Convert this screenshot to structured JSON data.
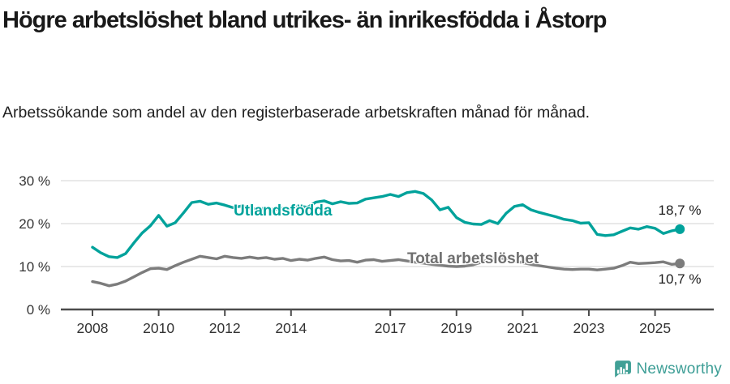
{
  "title": "Högre arbetslöshet bland utrikes- än inrikesfödda i Åstorp",
  "subtitle": "Arbetssökande som andel av den registerbaserade arbetskraften månad för månad.",
  "footer": {
    "brand": "Newsworthy"
  },
  "colors": {
    "accent_teal": "#00a29b",
    "series_gray": "#7c7c7c",
    "axis_line": "#4c4c4c",
    "gridline": "#dcdcdc",
    "tick_text": "#333333",
    "logo_teal": "#41a096"
  },
  "chart_data": {
    "type": "line",
    "title": "Högre arbetslöshet bland utrikes- än inrikesfödda i Åstorp",
    "xlabel": "",
    "ylabel": "",
    "x_unit": "year (monthly series, quarterly sampled estimate)",
    "ylim": [
      0,
      30
    ],
    "grid": "horizontal",
    "legend_position": "inline-labels",
    "yticks": [
      {
        "value": 0,
        "label": "0 %"
      },
      {
        "value": 10,
        "label": "10 %"
      },
      {
        "value": 20,
        "label": "20 %"
      },
      {
        "value": 30,
        "label": "30 %"
      }
    ],
    "xticks": [
      {
        "value": 2008,
        "label": "2008"
      },
      {
        "value": 2010,
        "label": "2010"
      },
      {
        "value": 2012,
        "label": "2012"
      },
      {
        "value": 2014,
        "label": "2014"
      },
      {
        "value": 2017,
        "label": "2017"
      },
      {
        "value": 2019,
        "label": "2019"
      },
      {
        "value": 2021,
        "label": "2021"
      },
      {
        "value": 2023,
        "label": "2023"
      },
      {
        "value": 2025,
        "label": "2025"
      }
    ],
    "x": [
      2008.0,
      2008.25,
      2008.5,
      2008.75,
      2009.0,
      2009.25,
      2009.5,
      2009.75,
      2010.0,
      2010.25,
      2010.5,
      2010.75,
      2011.0,
      2011.25,
      2011.5,
      2011.75,
      2012.0,
      2012.25,
      2012.5,
      2012.75,
      2013.0,
      2013.25,
      2013.5,
      2013.75,
      2014.0,
      2014.25,
      2014.5,
      2014.75,
      2015.0,
      2015.25,
      2015.5,
      2015.75,
      2016.0,
      2016.25,
      2016.5,
      2016.75,
      2017.0,
      2017.25,
      2017.5,
      2017.75,
      2018.0,
      2018.25,
      2018.5,
      2018.75,
      2019.0,
      2019.25,
      2019.5,
      2019.75,
      2020.0,
      2020.25,
      2020.5,
      2020.75,
      2021.0,
      2021.25,
      2021.5,
      2021.75,
      2022.0,
      2022.25,
      2022.5,
      2022.75,
      2023.0,
      2023.25,
      2023.5,
      2023.75,
      2024.0,
      2024.25,
      2024.5,
      2024.75,
      2025.0,
      2025.25,
      2025.5,
      2025.75
    ],
    "series": [
      {
        "name": "Utlandsfödda",
        "color": "#00a29b",
        "end_label": "18,7 %",
        "end_value": 18.7,
        "values": [
          14.5,
          13.2,
          12.3,
          12.1,
          13.0,
          15.5,
          17.8,
          19.5,
          21.9,
          19.4,
          20.2,
          22.5,
          24.9,
          25.2,
          24.5,
          24.8,
          24.3,
          23.7,
          24.1,
          23.6,
          23.3,
          23.7,
          23.2,
          23.6,
          23.5,
          24.1,
          23.8,
          25.0,
          25.3,
          24.6,
          25.1,
          24.7,
          24.8,
          25.7,
          26.0,
          26.3,
          26.8,
          26.3,
          27.2,
          27.5,
          27.0,
          25.5,
          23.2,
          23.8,
          21.4,
          20.3,
          19.9,
          19.8,
          20.7,
          20.0,
          22.4,
          24.0,
          24.4,
          23.2,
          22.6,
          22.1,
          21.6,
          21.0,
          20.7,
          20.1,
          20.2,
          17.5,
          17.2,
          17.4,
          18.2,
          19.0,
          18.7,
          19.3,
          18.9,
          17.7,
          18.3,
          18.7
        ]
      },
      {
        "name": "Total arbetslöshet",
        "color": "#7c7c7c",
        "end_label": "10,7 %",
        "end_value": 10.7,
        "values": [
          6.5,
          6.1,
          5.5,
          5.9,
          6.6,
          7.6,
          8.6,
          9.5,
          9.6,
          9.3,
          10.2,
          11.0,
          11.7,
          12.4,
          12.1,
          11.8,
          12.4,
          12.1,
          11.9,
          12.2,
          11.9,
          12.1,
          11.7,
          11.9,
          11.4,
          11.7,
          11.5,
          11.9,
          12.2,
          11.6,
          11.3,
          11.4,
          11.0,
          11.5,
          11.6,
          11.2,
          11.4,
          11.6,
          11.3,
          11.0,
          10.8,
          10.5,
          10.3,
          10.1,
          10.0,
          10.1,
          10.4,
          11.0,
          11.7,
          12.0,
          11.8,
          11.3,
          10.9,
          10.5,
          10.2,
          9.9,
          9.6,
          9.4,
          9.3,
          9.4,
          9.4,
          9.2,
          9.4,
          9.6,
          10.2,
          11.0,
          10.7,
          10.8,
          10.9,
          11.1,
          10.5,
          10.7
        ]
      }
    ]
  }
}
